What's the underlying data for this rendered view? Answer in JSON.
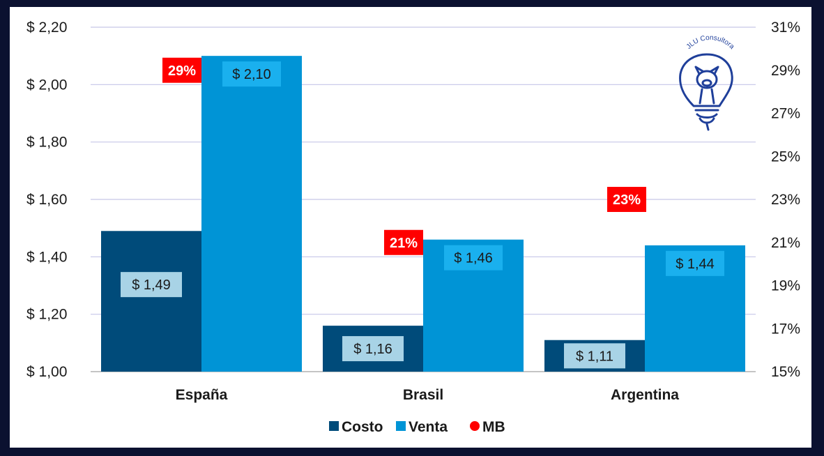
{
  "chart_data": {
    "type": "bar",
    "categories": [
      "España",
      "Brasil",
      "Argentina"
    ],
    "series": [
      {
        "name": "Costo",
        "values": [
          1.49,
          1.16,
          1.11
        ],
        "labels": [
          "$ 1,49",
          "$ 1,16",
          "$ 1,11"
        ],
        "color": "#004b7a",
        "label_bg": "#a8d3e6"
      },
      {
        "name": "Venta",
        "values": [
          2.1,
          1.46,
          1.44
        ],
        "labels": [
          "$ 2,10",
          "$ 1,46",
          "$ 1,44"
        ],
        "color": "#0094d6",
        "label_bg": "#1ab0ee"
      },
      {
        "name": "MB",
        "type": "scatter",
        "axis": "secondary",
        "values": [
          0.29,
          0.21,
          0.23
        ],
        "labels": [
          "29%",
          "21%",
          "23%"
        ],
        "color": "#ff0000"
      }
    ],
    "y_primary": {
      "range": [
        1.0,
        2.2
      ],
      "ticks": [
        1.0,
        1.2,
        1.4,
        1.6,
        1.8,
        2.0,
        2.2
      ],
      "tick_labels": [
        "$ 1,00",
        "$ 1,20",
        "$ 1,40",
        "$ 1,60",
        "$ 1,80",
        "$ 2,00",
        "$ 2,20"
      ]
    },
    "y_secondary": {
      "range": [
        0.15,
        0.31
      ],
      "ticks": [
        0.15,
        0.17,
        0.19,
        0.21,
        0.23,
        0.25,
        0.27,
        0.29,
        0.31
      ],
      "tick_labels": [
        "15%",
        "17%",
        "19%",
        "21%",
        "23%",
        "25%",
        "27%",
        "29%",
        "31%"
      ]
    },
    "grid": true,
    "legend": {
      "position": "bottom",
      "entries": [
        "Costo",
        "Venta",
        "MB"
      ]
    }
  },
  "logo": {
    "text": "JLU Consultora",
    "icon": "lightbulb-pig-icon",
    "color": "#1f3f9a"
  }
}
